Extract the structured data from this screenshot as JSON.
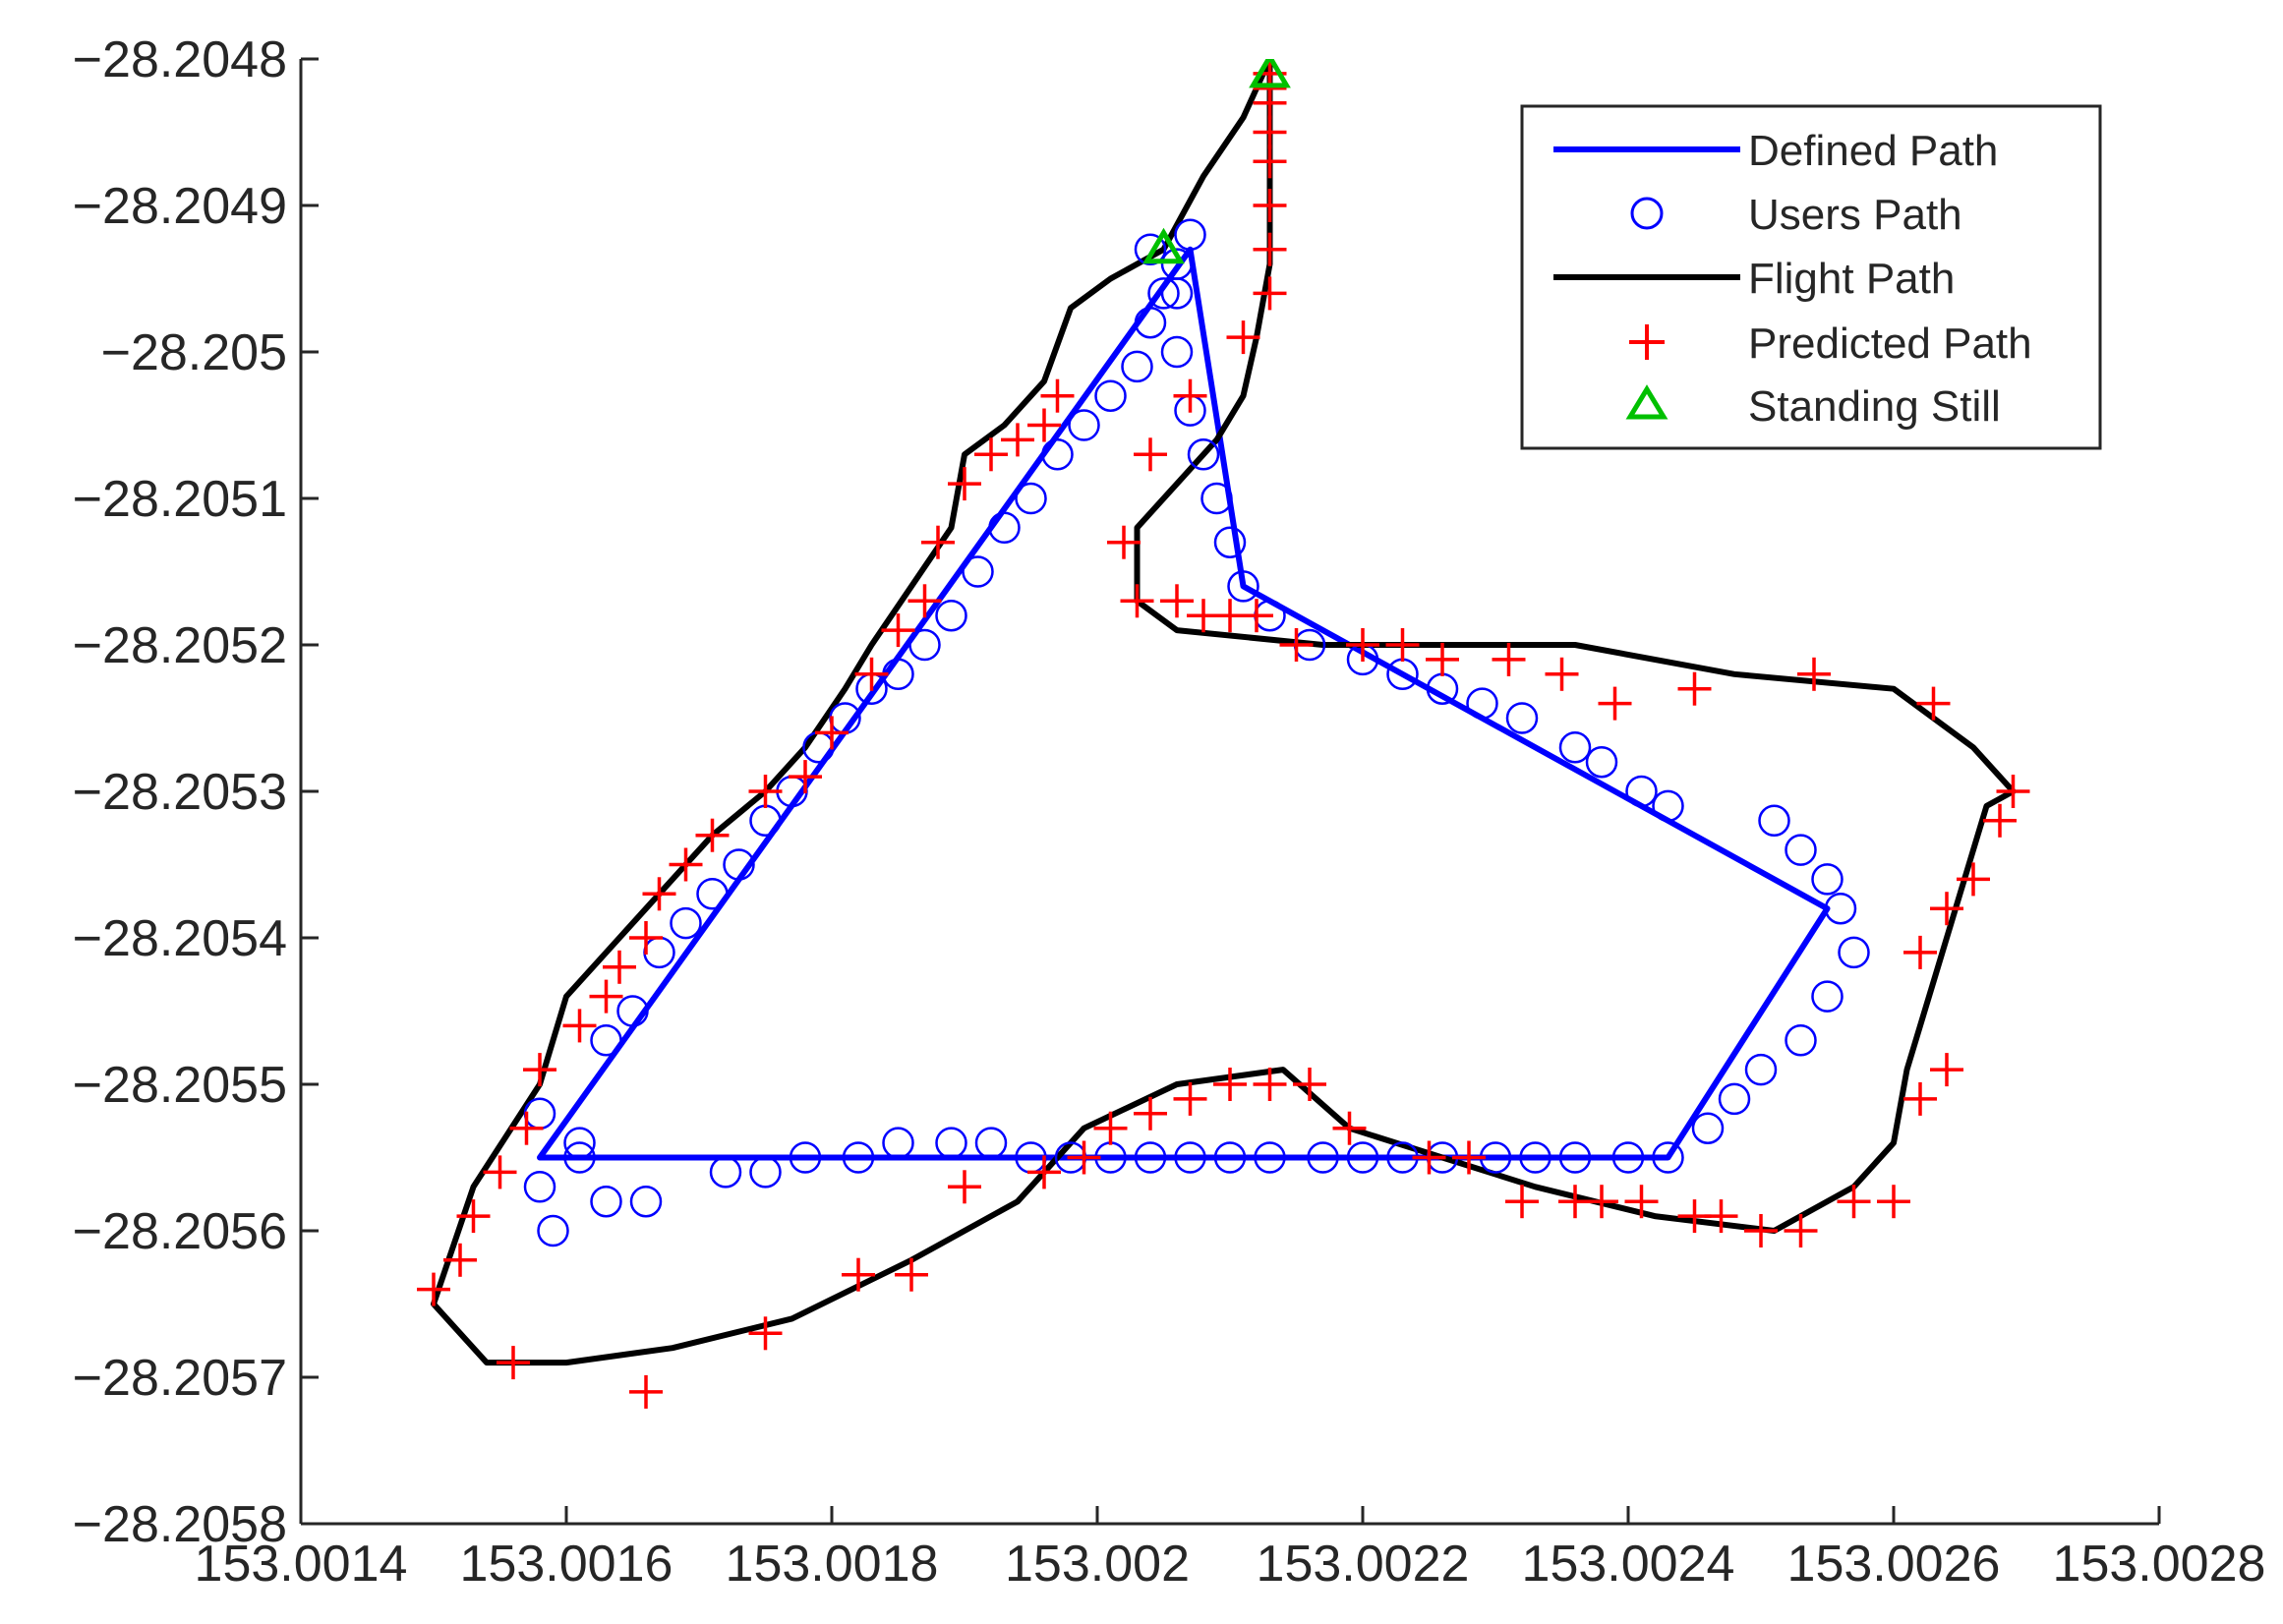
{
  "chart_data": {
    "type": "line",
    "title": "",
    "xlabel": "",
    "ylabel": "",
    "xlim": [
      153.0014,
      153.0028
    ],
    "ylim": [
      -28.2058,
      -28.2048
    ],
    "xticks": [
      153.0014,
      153.0016,
      153.0018,
      153.002,
      153.0022,
      153.0024,
      153.0026,
      153.0028
    ],
    "xtick_labels": [
      "153.0014",
      "153.0016",
      "153.0018",
      "153.002",
      "153.0022",
      "153.0024",
      "153.0026",
      "153.0028"
    ],
    "yticks": [
      -28.2048,
      -28.2049,
      -28.205,
      -28.2051,
      -28.2052,
      -28.2053,
      -28.2054,
      -28.2055,
      -28.2056,
      -28.2057,
      -28.2058
    ],
    "ytick_labels": [
      "−28.2048",
      "−28.2049",
      "−28.205",
      "−28.2051",
      "−28.2052",
      "−28.2053",
      "−28.2054",
      "−28.2055",
      "−28.2056",
      "−28.2057",
      "−28.2058"
    ],
    "grid": false,
    "legend_position": "top-right",
    "series": [
      {
        "name": "Defined Path",
        "style": "line",
        "color": "#0000ff",
        "points": [
          [
            153.00158,
            -28.20555
          ],
          [
            153.00207,
            -28.20493
          ],
          [
            153.00211,
            -28.20516
          ],
          [
            153.00255,
            -28.20538
          ],
          [
            153.00243,
            -28.20555
          ],
          [
            153.00158,
            -28.20555
          ]
        ]
      },
      {
        "name": "Users Path",
        "style": "circle",
        "color": "#0000ff",
        "points": [
          [
            153.00158,
            -28.20552
          ],
          [
            153.00158,
            -28.20557
          ],
          [
            153.00159,
            -28.2056
          ],
          [
            153.00161,
            -28.20554
          ],
          [
            153.00163,
            -28.20558
          ],
          [
            153.00166,
            -28.20558
          ],
          [
            153.00163,
            -28.20547
          ],
          [
            153.00165,
            -28.20545
          ],
          [
            153.00167,
            -28.20541
          ],
          [
            153.00169,
            -28.20539
          ],
          [
            153.00171,
            -28.20537
          ],
          [
            153.00173,
            -28.20535
          ],
          [
            153.00175,
            -28.20532
          ],
          [
            153.00177,
            -28.2053
          ],
          [
            153.00179,
            -28.20527
          ],
          [
            153.00181,
            -28.20525
          ],
          [
            153.00183,
            -28.20523
          ],
          [
            153.00185,
            -28.20522
          ],
          [
            153.00187,
            -28.2052
          ],
          [
            153.00189,
            -28.20518
          ],
          [
            153.00191,
            -28.20515
          ],
          [
            153.00193,
            -28.20512
          ],
          [
            153.00195,
            -28.2051
          ],
          [
            153.00197,
            -28.20507
          ],
          [
            153.00199,
            -28.20505
          ],
          [
            153.00201,
            -28.20503
          ],
          [
            153.00203,
            -28.20501
          ],
          [
            153.00204,
            -28.20498
          ],
          [
            153.00205,
            -28.20496
          ],
          [
            153.00206,
            -28.20494
          ],
          [
            153.00204,
            -28.20493
          ],
          [
            153.00207,
            -28.20492
          ],
          [
            153.00206,
            -28.20496
          ],
          [
            153.00206,
            -28.205
          ],
          [
            153.00207,
            -28.20504
          ],
          [
            153.00208,
            -28.20507
          ],
          [
            153.00209,
            -28.2051
          ],
          [
            153.0021,
            -28.20513
          ],
          [
            153.00211,
            -28.20516
          ],
          [
            153.00213,
            -28.20518
          ],
          [
            153.00216,
            -28.2052
          ],
          [
            153.0022,
            -28.20521
          ],
          [
            153.00223,
            -28.20522
          ],
          [
            153.00226,
            -28.20523
          ],
          [
            153.00229,
            -28.20524
          ],
          [
            153.00232,
            -28.20525
          ],
          [
            153.00236,
            -28.20527
          ],
          [
            153.00238,
            -28.20528
          ],
          [
            153.00241,
            -28.2053
          ],
          [
            153.00243,
            -28.20531
          ],
          [
            153.00251,
            -28.20532
          ],
          [
            153.00253,
            -28.20534
          ],
          [
            153.00255,
            -28.20536
          ],
          [
            153.00256,
            -28.20538
          ],
          [
            153.00257,
            -28.20541
          ],
          [
            153.00255,
            -28.20544
          ],
          [
            153.00253,
            -28.20547
          ],
          [
            153.0025,
            -28.20549
          ],
          [
            153.00248,
            -28.20551
          ],
          [
            153.00246,
            -28.20553
          ],
          [
            153.00243,
            -28.20555
          ],
          [
            153.0024,
            -28.20555
          ],
          [
            153.00236,
            -28.20555
          ],
          [
            153.00233,
            -28.20555
          ],
          [
            153.0023,
            -28.20555
          ],
          [
            153.00226,
            -28.20555
          ],
          [
            153.00223,
            -28.20555
          ],
          [
            153.0022,
            -28.20555
          ],
          [
            153.00217,
            -28.20555
          ],
          [
            153.00213,
            -28.20555
          ],
          [
            153.0021,
            -28.20555
          ],
          [
            153.00207,
            -28.20555
          ],
          [
            153.00204,
            -28.20555
          ],
          [
            153.00201,
            -28.20555
          ],
          [
            153.00198,
            -28.20555
          ],
          [
            153.00195,
            -28.20555
          ],
          [
            153.00192,
            -28.20554
          ],
          [
            153.00189,
            -28.20554
          ],
          [
            153.00185,
            -28.20554
          ],
          [
            153.00182,
            -28.20555
          ],
          [
            153.00178,
            -28.20555
          ],
          [
            153.00175,
            -28.20556
          ],
          [
            153.00172,
            -28.20556
          ],
          [
            153.00161,
            -28.20555
          ]
        ]
      },
      {
        "name": "Flight Path",
        "style": "line",
        "color": "#000000",
        "points": [
          [
            153.00213,
            -28.2048
          ],
          [
            153.00211,
            -28.20484
          ],
          [
            153.00208,
            -28.20488
          ],
          [
            153.00205,
            -28.20493
          ],
          [
            153.00201,
            -28.20495
          ],
          [
            153.00198,
            -28.20497
          ],
          [
            153.00196,
            -28.20502
          ],
          [
            153.00193,
            -28.20505
          ],
          [
            153.0019,
            -28.20507
          ],
          [
            153.00189,
            -28.20512
          ],
          [
            153.00186,
            -28.20516
          ],
          [
            153.00183,
            -28.2052
          ],
          [
            153.00181,
            -28.20523
          ],
          [
            153.00178,
            -28.20527
          ],
          [
            153.00175,
            -28.2053
          ],
          [
            153.00171,
            -28.20533
          ],
          [
            153.00167,
            -28.20537
          ],
          [
            153.00164,
            -28.2054
          ],
          [
            153.0016,
            -28.20544
          ],
          [
            153.00158,
            -28.2055
          ],
          [
            153.00153,
            -28.20557
          ],
          [
            153.0015,
            -28.20565
          ],
          [
            153.00154,
            -28.20569
          ],
          [
            153.0016,
            -28.20569
          ],
          [
            153.00168,
            -28.20568
          ],
          [
            153.00177,
            -28.20566
          ],
          [
            153.00186,
            -28.20562
          ],
          [
            153.00194,
            -28.20558
          ],
          [
            153.00199,
            -28.20553
          ],
          [
            153.00206,
            -28.2055
          ],
          [
            153.00214,
            -28.20549
          ],
          [
            153.00219,
            -28.20553
          ],
          [
            153.00226,
            -28.20555
          ],
          [
            153.00233,
            -28.20557
          ],
          [
            153.00242,
            -28.20559
          ],
          [
            153.00251,
            -28.2056
          ],
          [
            153.00257,
            -28.20557
          ],
          [
            153.0026,
            -28.20554
          ],
          [
            153.00261,
            -28.20549
          ],
          [
            153.00263,
            -28.20543
          ],
          [
            153.00265,
            -28.20537
          ],
          [
            153.00267,
            -28.20531
          ],
          [
            153.00269,
            -28.2053
          ],
          [
            153.00266,
            -28.20527
          ],
          [
            153.0026,
            -28.20523
          ],
          [
            153.00248,
            -28.20522
          ],
          [
            153.00236,
            -28.2052
          ],
          [
            153.00225,
            -28.2052
          ],
          [
            153.00217,
            -28.2052
          ],
          [
            153.00206,
            -28.20519
          ],
          [
            153.00203,
            -28.20517
          ],
          [
            153.00203,
            -28.20512
          ],
          [
            153.00206,
            -28.20509
          ],
          [
            153.00209,
            -28.20506
          ],
          [
            153.00211,
            -28.20503
          ],
          [
            153.00212,
            -28.20499
          ],
          [
            153.00213,
            -28.20494
          ],
          [
            153.00213,
            -28.20489
          ],
          [
            153.00213,
            -28.20485
          ],
          [
            153.00213,
            -28.2048
          ]
        ]
      },
      {
        "name": "Predicted Path",
        "style": "plus",
        "color": "#ff0000",
        "points": [
          [
            153.00213,
            -28.20481
          ],
          [
            153.00213,
            -28.20482
          ],
          [
            153.00213,
            -28.20483
          ],
          [
            153.00213,
            -28.20485
          ],
          [
            153.00213,
            -28.20487
          ],
          [
            153.00213,
            -28.2049
          ],
          [
            153.00213,
            -28.20493
          ],
          [
            153.00213,
            -28.20496
          ],
          [
            153.00211,
            -28.20499
          ],
          [
            153.00207,
            -28.20503
          ],
          [
            153.00204,
            -28.20507
          ],
          [
            153.00202,
            -28.20513
          ],
          [
            153.00203,
            -28.20517
          ],
          [
            153.00206,
            -28.20517
          ],
          [
            153.00208,
            -28.20518
          ],
          [
            153.0021,
            -28.20518
          ],
          [
            153.00212,
            -28.20518
          ],
          [
            153.00215,
            -28.2052
          ],
          [
            153.0022,
            -28.2052
          ],
          [
            153.00223,
            -28.2052
          ],
          [
            153.00226,
            -28.20521
          ],
          [
            153.00231,
            -28.20521
          ],
          [
            153.00235,
            -28.20522
          ],
          [
            153.00239,
            -28.20524
          ],
          [
            153.00245,
            -28.20523
          ],
          [
            153.00254,
            -28.20522
          ],
          [
            153.00263,
            -28.20524
          ],
          [
            153.00269,
            -28.2053
          ],
          [
            153.00268,
            -28.20532
          ],
          [
            153.00266,
            -28.20536
          ],
          [
            153.00264,
            -28.20538
          ],
          [
            153.00262,
            -28.20541
          ],
          [
            153.00264,
            -28.20549
          ],
          [
            153.00262,
            -28.20551
          ],
          [
            153.0026,
            -28.20558
          ],
          [
            153.00257,
            -28.20558
          ],
          [
            153.00253,
            -28.2056
          ],
          [
            153.0025,
            -28.2056
          ],
          [
            153.00247,
            -28.20559
          ],
          [
            153.00245,
            -28.20559
          ],
          [
            153.00241,
            -28.20558
          ],
          [
            153.00238,
            -28.20558
          ],
          [
            153.00236,
            -28.20558
          ],
          [
            153.00232,
            -28.20558
          ],
          [
            153.00228,
            -28.20555
          ],
          [
            153.00225,
            -28.20555
          ],
          [
            153.00219,
            -28.20553
          ],
          [
            153.00216,
            -28.2055
          ],
          [
            153.00213,
            -28.2055
          ],
          [
            153.0021,
            -28.2055
          ],
          [
            153.00207,
            -28.20551
          ],
          [
            153.00204,
            -28.20552
          ],
          [
            153.00201,
            -28.20553
          ],
          [
            153.00199,
            -28.20555
          ],
          [
            153.00196,
            -28.20556
          ],
          [
            153.0019,
            -28.20557
          ],
          [
            153.00186,
            -28.20563
          ],
          [
            153.00182,
            -28.20563
          ],
          [
            153.00175,
            -28.20567
          ],
          [
            153.00166,
            -28.20571
          ],
          [
            153.00156,
            -28.20569
          ],
          [
            153.00152,
            -28.20562
          ],
          [
            153.0015,
            -28.20564
          ],
          [
            153.00153,
            -28.20559
          ],
          [
            153.00155,
            -28.20556
          ],
          [
            153.00157,
            -28.20553
          ],
          [
            153.00158,
            -28.20549
          ],
          [
            153.00161,
            -28.20546
          ],
          [
            153.00163,
            -28.20544
          ],
          [
            153.00164,
            -28.20542
          ],
          [
            153.00166,
            -28.2054
          ],
          [
            153.00167,
            -28.20537
          ],
          [
            153.00169,
            -28.20535
          ],
          [
            153.00171,
            -28.20533
          ],
          [
            153.00175,
            -28.2053
          ],
          [
            153.00178,
            -28.20529
          ],
          [
            153.0018,
            -28.20526
          ],
          [
            153.00183,
            -28.20522
          ],
          [
            153.00185,
            -28.20519
          ],
          [
            153.00187,
            -28.20517
          ],
          [
            153.00188,
            -28.20513
          ],
          [
            153.0019,
            -28.20509
          ],
          [
            153.00192,
            -28.20507
          ],
          [
            153.00194,
            -28.20506
          ],
          [
            153.00196,
            -28.20505
          ],
          [
            153.00197,
            -28.20503
          ]
        ]
      },
      {
        "name": "Standing Still",
        "style": "triangle",
        "color": "#00c000",
        "points": [
          [
            153.00213,
            -28.20481
          ],
          [
            153.00205,
            -28.20493
          ]
        ]
      }
    ]
  },
  "legend": {
    "items": [
      {
        "label": "Defined Path"
      },
      {
        "label": "Users Path"
      },
      {
        "label": "Flight Path"
      },
      {
        "label": "Predicted Path"
      },
      {
        "label": "Standing Still"
      }
    ]
  }
}
